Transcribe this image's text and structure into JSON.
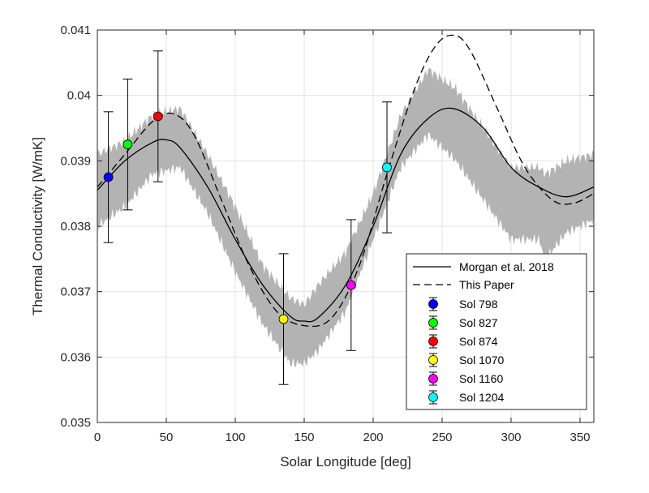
{
  "chart_data": {
    "type": "line",
    "title": "",
    "xlabel": "Solar Longitude [deg]",
    "ylabel": "Thermal Conductivity [W/mK]",
    "xlim": [
      0,
      360
    ],
    "ylim": [
      0.035,
      0.041
    ],
    "xticks": [
      0,
      50,
      100,
      150,
      200,
      250,
      300,
      350
    ],
    "yticks": [
      0.035,
      0.036,
      0.037,
      0.038,
      0.039,
      0.04,
      0.041
    ],
    "xtick_labels": [
      "0",
      "50",
      "100",
      "150",
      "200",
      "250",
      "300",
      "350"
    ],
    "ytick_labels": [
      "0.035",
      "0.036",
      "0.037",
      "0.038",
      "0.039",
      "0.04",
      "0.041"
    ],
    "grid": true,
    "legend_position": "bottom-right",
    "band": {
      "color": "#b3b3b3",
      "x": [
        0,
        20,
        40,
        60,
        80,
        100,
        120,
        140,
        150,
        160,
        180,
        200,
        220,
        240,
        260,
        280,
        300,
        320,
        325,
        340,
        360
      ],
      "upper": [
        0.0391,
        0.0393,
        0.0397,
        0.0398,
        0.0391,
        0.0383,
        0.0374,
        0.0369,
        0.0368,
        0.0371,
        0.0376,
        0.0385,
        0.0397,
        0.0404,
        0.0401,
        0.0395,
        0.0389,
        0.0389,
        0.0388,
        0.039,
        0.0391
      ],
      "lower": [
        0.038,
        0.0383,
        0.0388,
        0.0389,
        0.0382,
        0.0373,
        0.0365,
        0.0359,
        0.0359,
        0.0361,
        0.0367,
        0.0378,
        0.0389,
        0.0394,
        0.039,
        0.0384,
        0.0378,
        0.0378,
        0.0375,
        0.0379,
        0.0381
      ]
    },
    "series": [
      {
        "name": "Morgan et al. 2018",
        "style": "solid",
        "color": "#000000",
        "x": [
          0,
          20,
          40,
          50,
          60,
          80,
          100,
          120,
          140,
          150,
          160,
          180,
          200,
          220,
          240,
          258,
          280,
          300,
          320,
          340,
          360
        ],
        "values": [
          0.03855,
          0.039,
          0.03928,
          0.03932,
          0.0392,
          0.0386,
          0.0378,
          0.0371,
          0.03662,
          0.03655,
          0.0366,
          0.0371,
          0.038,
          0.0391,
          0.03965,
          0.0398,
          0.0395,
          0.0389,
          0.0386,
          0.03845,
          0.0386
        ]
      },
      {
        "name": "This Paper",
        "style": "dashed",
        "color": "#000000",
        "x": [
          0,
          20,
          40,
          55,
          70,
          90,
          110,
          130,
          150,
          170,
          190,
          210,
          230,
          245,
          258,
          270,
          290,
          310,
          330,
          345,
          360
        ],
        "values": [
          0.0386,
          0.0391,
          0.0396,
          0.03972,
          0.0394,
          0.0384,
          0.0374,
          0.0367,
          0.03648,
          0.0366,
          0.0374,
          0.0388,
          0.0401,
          0.04075,
          0.04092,
          0.0407,
          0.0398,
          0.0389,
          0.0384,
          0.03835,
          0.0385
        ]
      }
    ],
    "points": [
      {
        "name": "Sol 798",
        "x": 8,
        "y": 0.03875,
        "err": 0.001,
        "color": "#0000ff"
      },
      {
        "name": "Sol 827",
        "x": 22,
        "y": 0.03925,
        "err": 0.001,
        "color": "#00ff00"
      },
      {
        "name": "Sol 874",
        "x": 44,
        "y": 0.03968,
        "err": 0.001,
        "color": "#ff0000"
      },
      {
        "name": "Sol 1070",
        "x": 135,
        "y": 0.03658,
        "err": 0.001,
        "color": "#ffff00"
      },
      {
        "name": "Sol 1160",
        "x": 184,
        "y": 0.0371,
        "err": 0.001,
        "color": "#ff00ff"
      },
      {
        "name": "Sol 1204",
        "x": 210,
        "y": 0.0389,
        "err": 0.001,
        "color": "#00ffff"
      }
    ]
  }
}
